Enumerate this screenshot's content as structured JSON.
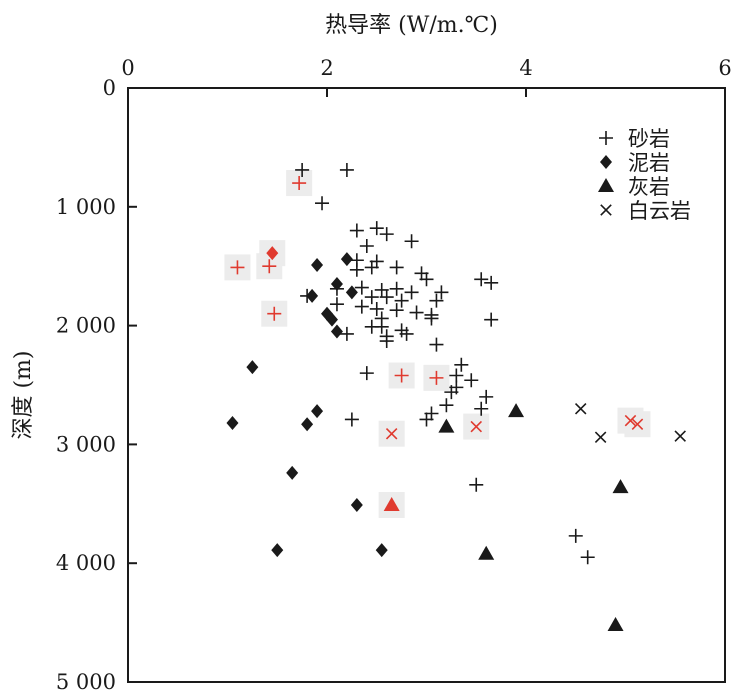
{
  "chart_data": {
    "type": "scatter",
    "xlabel": "热导率 (W/m.℃)",
    "ylabel": "深度 (m)",
    "xlim": [
      0,
      6
    ],
    "ylim": [
      0,
      5000
    ],
    "x_axis_position": "top",
    "y_axis_inverted": true,
    "xticks": [
      0,
      2,
      4,
      6
    ],
    "xtick_labels": [
      "0",
      "2",
      "4",
      "6"
    ],
    "yticks": [
      0,
      1000,
      2000,
      3000,
      4000,
      5000
    ],
    "ytick_labels": [
      "0",
      "1 000",
      "2 000",
      "3 000",
      "4 000",
      "5 000"
    ],
    "grid": false,
    "legend_position": "top-right",
    "highlight_color": "#e03a2f",
    "series": [
      {
        "name": "砂岩",
        "marker": "plus",
        "color": "#1a1a1a",
        "points": [
          [
            1.75,
            690
          ],
          [
            2.2,
            690
          ],
          [
            1.95,
            970
          ],
          [
            2.3,
            1200
          ],
          [
            2.5,
            1180
          ],
          [
            2.6,
            1230
          ],
          [
            2.85,
            1290
          ],
          [
            2.4,
            1330
          ],
          [
            2.3,
            1450
          ],
          [
            2.5,
            1460
          ],
          [
            2.45,
            1510
          ],
          [
            2.3,
            1530
          ],
          [
            2.7,
            1510
          ],
          [
            2.95,
            1560
          ],
          [
            3.0,
            1610
          ],
          [
            3.55,
            1610
          ],
          [
            3.65,
            1640
          ],
          [
            2.1,
            1690
          ],
          [
            2.35,
            1680
          ],
          [
            2.55,
            1700
          ],
          [
            2.7,
            1690
          ],
          [
            2.85,
            1720
          ],
          [
            3.15,
            1720
          ],
          [
            1.8,
            1750
          ],
          [
            2.45,
            1760
          ],
          [
            2.6,
            1760
          ],
          [
            2.75,
            1790
          ],
          [
            3.1,
            1790
          ],
          [
            2.1,
            1820
          ],
          [
            2.35,
            1840
          ],
          [
            2.5,
            1860
          ],
          [
            2.7,
            1870
          ],
          [
            2.9,
            1890
          ],
          [
            3.05,
            1910
          ],
          [
            2.55,
            1940
          ],
          [
            3.05,
            1940
          ],
          [
            3.65,
            1950
          ],
          [
            2.45,
            2010
          ],
          [
            2.55,
            2010
          ],
          [
            2.75,
            2040
          ],
          [
            2.2,
            2070
          ],
          [
            2.6,
            2090
          ],
          [
            2.8,
            2070
          ],
          [
            2.6,
            2130
          ],
          [
            3.1,
            2160
          ],
          [
            3.35,
            2330
          ],
          [
            2.4,
            2400
          ],
          [
            3.3,
            2420
          ],
          [
            3.45,
            2460
          ],
          [
            3.3,
            2520
          ],
          [
            3.25,
            2560
          ],
          [
            3.6,
            2600
          ],
          [
            3.2,
            2670
          ],
          [
            3.55,
            2700
          ],
          [
            3.05,
            2740
          ],
          [
            3.0,
            2790
          ],
          [
            2.25,
            2790
          ],
          [
            3.5,
            3340
          ],
          [
            4.5,
            3770
          ],
          [
            4.62,
            3950
          ]
        ]
      },
      {
        "name": "砂岩",
        "marker": "plus",
        "color": "#e03a2f",
        "points": [
          [
            1.72,
            800
          ],
          [
            1.1,
            1510
          ],
          [
            1.42,
            1500
          ],
          [
            1.47,
            1900
          ],
          [
            2.75,
            2420
          ],
          [
            3.1,
            2440
          ]
        ]
      },
      {
        "name": "泥岩",
        "marker": "diamond",
        "color": "#1a1a1a",
        "points": [
          [
            2.2,
            1440
          ],
          [
            1.9,
            1490
          ],
          [
            2.1,
            1650
          ],
          [
            2.25,
            1720
          ],
          [
            1.85,
            1750
          ],
          [
            2.0,
            1900
          ],
          [
            2.05,
            1950
          ],
          [
            2.1,
            2050
          ],
          [
            1.25,
            2350
          ],
          [
            1.9,
            2720
          ],
          [
            1.05,
            2820
          ],
          [
            1.8,
            2830
          ],
          [
            1.65,
            3240
          ],
          [
            2.3,
            3510
          ],
          [
            1.5,
            3890
          ],
          [
            2.55,
            3890
          ]
        ]
      },
      {
        "name": "泥岩",
        "marker": "diamond",
        "color": "#e03a2f",
        "points": [
          [
            1.45,
            1390
          ]
        ]
      },
      {
        "name": "灰岩",
        "marker": "triangle",
        "color": "#1a1a1a",
        "points": [
          [
            3.9,
            2720
          ],
          [
            3.2,
            2850
          ],
          [
            4.95,
            3360
          ],
          [
            3.6,
            3920
          ],
          [
            4.9,
            4520
          ]
        ]
      },
      {
        "name": "灰岩",
        "marker": "triangle",
        "color": "#e03a2f",
        "points": [
          [
            2.65,
            3510
          ]
        ]
      },
      {
        "name": "白云岩",
        "marker": "x",
        "color": "#1a1a1a",
        "points": [
          [
            4.55,
            2700
          ],
          [
            4.75,
            2940
          ],
          [
            5.55,
            2930
          ]
        ]
      },
      {
        "name": "白云岩",
        "marker": "x",
        "color": "#e03a2f",
        "points": [
          [
            2.65,
            2910
          ],
          [
            3.5,
            2850
          ],
          [
            5.05,
            2800
          ],
          [
            5.12,
            2830
          ]
        ]
      }
    ]
  }
}
